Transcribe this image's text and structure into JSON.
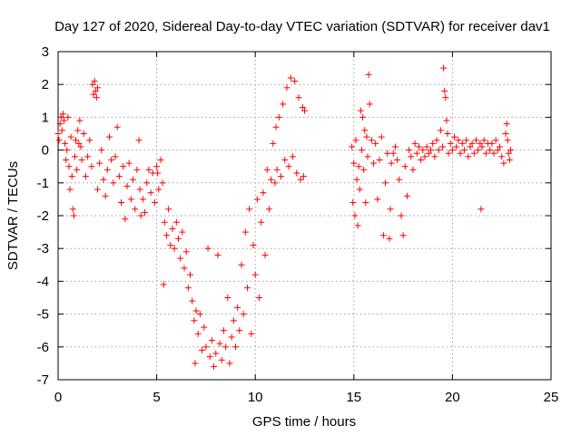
{
  "chart_data": {
    "type": "scatter",
    "title": "Day 127 of 2020, Sidereal Day-to-day VTEC variation (SDTVAR) for receiver dav1",
    "xlabel": "GPS time / hours",
    "ylabel": "SDTVAR / TECUs",
    "xlim": [
      0,
      25
    ],
    "ylim": [
      -7,
      3
    ],
    "x_ticks": [
      0,
      5,
      10,
      15,
      20,
      25
    ],
    "y_ticks": [
      -7,
      -6,
      -5,
      -4,
      -3,
      -2,
      -1,
      0,
      1,
      2,
      3
    ],
    "x_tick_labels": [
      "0",
      "5",
      "10",
      "15",
      "20",
      "25"
    ],
    "y_tick_labels": [
      "-7",
      "-6",
      "-5",
      "-4",
      "-3",
      "-2",
      "-1",
      "0",
      "1",
      "2",
      "3"
    ],
    "grid": true,
    "marker": "+",
    "marker_color": "#ff0000",
    "series": [
      {
        "name": "dav1",
        "points": [
          [
            0.0,
            0.5
          ],
          [
            0.05,
            0.3
          ],
          [
            0.1,
            0.8
          ],
          [
            0.15,
            1.0
          ],
          [
            0.2,
            0.6
          ],
          [
            0.25,
            1.1
          ],
          [
            0.3,
            0.9
          ],
          [
            0.35,
            0.2
          ],
          [
            0.4,
            -0.3
          ],
          [
            0.45,
            0.0
          ],
          [
            0.5,
            1.0
          ],
          [
            0.55,
            -0.5
          ],
          [
            0.6,
            -1.2
          ],
          [
            0.65,
            0.4
          ],
          [
            0.7,
            -0.8
          ],
          [
            0.75,
            -1.8
          ],
          [
            0.8,
            -2.0
          ],
          [
            0.85,
            -0.2
          ],
          [
            0.9,
            0.3
          ],
          [
            0.95,
            -0.6
          ],
          [
            1.0,
            0.6
          ],
          [
            1.05,
            0.2
          ],
          [
            1.1,
            0.9
          ],
          [
            1.15,
            0.1
          ],
          [
            1.2,
            -0.3
          ],
          [
            1.3,
            0.5
          ],
          [
            1.4,
            -0.8
          ],
          [
            1.5,
            -0.2
          ],
          [
            1.6,
            0.3
          ],
          [
            1.7,
            -0.5
          ],
          [
            1.75,
            2.0
          ],
          [
            1.8,
            1.7
          ],
          [
            1.85,
            2.1
          ],
          [
            1.9,
            1.8
          ],
          [
            1.95,
            1.6
          ],
          [
            2.0,
            1.9
          ],
          [
            2.0,
            -1.2
          ],
          [
            2.1,
            -0.4
          ],
          [
            2.2,
            0.0
          ],
          [
            2.3,
            -0.9
          ],
          [
            2.4,
            -1.4
          ],
          [
            2.5,
            -0.6
          ],
          [
            2.6,
            0.4
          ],
          [
            2.7,
            -0.3
          ],
          [
            2.8,
            -1.0
          ],
          [
            2.9,
            -0.2
          ],
          [
            3.0,
            0.7
          ],
          [
            3.1,
            -0.8
          ],
          [
            3.2,
            -1.6
          ],
          [
            3.3,
            -0.5
          ],
          [
            3.4,
            -2.1
          ],
          [
            3.5,
            -1.1
          ],
          [
            3.6,
            -0.4
          ],
          [
            3.7,
            -1.5
          ],
          [
            3.8,
            -0.9
          ],
          [
            3.9,
            -1.8
          ],
          [
            4.0,
            -0.6
          ],
          [
            4.1,
            0.3
          ],
          [
            4.15,
            -1.2
          ],
          [
            4.2,
            -2.0
          ],
          [
            4.3,
            -1.5
          ],
          [
            4.4,
            -1.9
          ],
          [
            4.5,
            -1.0
          ],
          [
            4.6,
            -0.6
          ],
          [
            4.7,
            -1.3
          ],
          [
            4.8,
            -0.7
          ],
          [
            4.9,
            -1.6
          ],
          [
            5.0,
            -0.5
          ],
          [
            5.05,
            -0.7
          ],
          [
            5.1,
            -1.2
          ],
          [
            5.2,
            -0.3
          ],
          [
            5.3,
            -1.0
          ],
          [
            5.35,
            -4.1
          ],
          [
            5.4,
            -2.2
          ],
          [
            5.5,
            -2.6
          ],
          [
            5.6,
            -1.8
          ],
          [
            5.7,
            -2.9
          ],
          [
            5.8,
            -2.4
          ],
          [
            5.9,
            -3.0
          ],
          [
            6.0,
            -2.2
          ],
          [
            6.1,
            -2.7
          ],
          [
            6.2,
            -3.3
          ],
          [
            6.3,
            -2.5
          ],
          [
            6.4,
            -3.6
          ],
          [
            6.5,
            -3.1
          ],
          [
            6.6,
            -4.2
          ],
          [
            6.7,
            -3.8
          ],
          [
            6.8,
            -4.6
          ],
          [
            6.9,
            -5.2
          ],
          [
            6.95,
            -6.5
          ],
          [
            7.0,
            -4.9
          ],
          [
            7.1,
            -5.6
          ],
          [
            7.2,
            -5.0
          ],
          [
            7.3,
            -6.1
          ],
          [
            7.4,
            -5.4
          ],
          [
            7.5,
            -6.0
          ],
          [
            7.6,
            -3.0
          ],
          [
            7.7,
            -6.3
          ],
          [
            7.8,
            -5.8
          ],
          [
            7.9,
            -6.6
          ],
          [
            8.0,
            -6.2
          ],
          [
            8.1,
            -3.2
          ],
          [
            8.2,
            -5.9
          ],
          [
            8.3,
            -6.4
          ],
          [
            8.4,
            -5.5
          ],
          [
            8.5,
            -6.0
          ],
          [
            8.6,
            -4.5
          ],
          [
            8.7,
            -6.5
          ],
          [
            8.8,
            -5.7
          ],
          [
            8.9,
            -5.2
          ],
          [
            9.0,
            -6.0
          ],
          [
            9.1,
            -4.8
          ],
          [
            9.2,
            -5.5
          ],
          [
            9.3,
            -3.5
          ],
          [
            9.4,
            -5.0
          ],
          [
            9.5,
            -2.5
          ],
          [
            9.6,
            -4.2
          ],
          [
            9.7,
            -1.8
          ],
          [
            9.8,
            -5.6
          ],
          [
            9.9,
            -2.9
          ],
          [
            10.0,
            -3.8
          ],
          [
            10.1,
            -1.5
          ],
          [
            10.2,
            -4.5
          ],
          [
            10.3,
            -2.2
          ],
          [
            10.4,
            -1.3
          ],
          [
            10.5,
            -3.2
          ],
          [
            10.6,
            -0.6
          ],
          [
            10.7,
            -1.8
          ],
          [
            10.8,
            -0.9
          ],
          [
            10.9,
            0.2
          ],
          [
            11.0,
            -1.0
          ],
          [
            11.05,
            0.7
          ],
          [
            11.1,
            -0.6
          ],
          [
            11.2,
            1.0
          ],
          [
            11.3,
            -0.8
          ],
          [
            11.4,
            1.4
          ],
          [
            11.5,
            -0.3
          ],
          [
            11.6,
            1.9
          ],
          [
            11.7,
            -0.5
          ],
          [
            11.8,
            2.2
          ],
          [
            11.9,
            -0.2
          ],
          [
            12.0,
            2.1
          ],
          [
            12.1,
            -0.7
          ],
          [
            12.2,
            1.6
          ],
          [
            12.3,
            -0.9
          ],
          [
            12.4,
            1.3
          ],
          [
            12.5,
            1.2
          ],
          [
            12.45,
            -0.8
          ],
          [
            14.9,
            0.1
          ],
          [
            14.95,
            -1.6
          ],
          [
            15.0,
            -0.4
          ],
          [
            15.05,
            -2.0
          ],
          [
            15.1,
            0.3
          ],
          [
            15.15,
            -0.9
          ],
          [
            15.2,
            -2.3
          ],
          [
            15.25,
            -0.5
          ],
          [
            15.3,
            -1.2
          ],
          [
            15.35,
            1.2
          ],
          [
            15.4,
            0.0
          ],
          [
            15.45,
            1.0
          ],
          [
            15.5,
            -0.6
          ],
          [
            15.55,
            0.6
          ],
          [
            15.6,
            -1.6
          ],
          [
            15.65,
            0.4
          ],
          [
            15.7,
            -0.2
          ],
          [
            15.75,
            2.3
          ],
          [
            15.8,
            1.4
          ],
          [
            15.9,
            0.3
          ],
          [
            16.0,
            -0.4
          ],
          [
            16.1,
            0.2
          ],
          [
            16.2,
            -1.5
          ],
          [
            16.3,
            -0.3
          ],
          [
            16.4,
            0.4
          ],
          [
            16.5,
            -2.6
          ],
          [
            16.6,
            -1.0
          ],
          [
            16.7,
            -0.1
          ],
          [
            16.8,
            -2.7
          ],
          [
            16.85,
            -1.8
          ],
          [
            16.9,
            -0.4
          ],
          [
            17.0,
            -0.1
          ],
          [
            17.1,
            0.1
          ],
          [
            17.2,
            -0.3
          ],
          [
            17.3,
            -0.9
          ],
          [
            17.4,
            -2.0
          ],
          [
            17.5,
            -2.6
          ],
          [
            17.6,
            -0.5
          ],
          [
            17.7,
            -1.4
          ],
          [
            17.8,
            0.0
          ],
          [
            17.9,
            -0.2
          ],
          [
            18.0,
            -0.6
          ],
          [
            18.1,
            0.2
          ],
          [
            18.2,
            -0.1
          ],
          [
            18.3,
            0.1
          ],
          [
            18.4,
            -0.3
          ],
          [
            18.5,
            0.0
          ],
          [
            18.6,
            -0.2
          ],
          [
            18.7,
            0.1
          ],
          [
            18.8,
            -0.1
          ],
          [
            18.9,
            0.0
          ],
          [
            19.0,
            0.2
          ],
          [
            19.1,
            -0.2
          ],
          [
            19.2,
            0.3
          ],
          [
            19.3,
            0.0
          ],
          [
            19.4,
            0.6
          ],
          [
            19.5,
            0.1
          ],
          [
            19.55,
            2.5
          ],
          [
            19.6,
            1.8
          ],
          [
            19.65,
            1.6
          ],
          [
            19.7,
            0.9
          ],
          [
            19.75,
            0.5
          ],
          [
            19.8,
            -0.1
          ],
          [
            19.9,
            0.2
          ],
          [
            20.0,
            0.0
          ],
          [
            20.1,
            0.4
          ],
          [
            20.2,
            0.1
          ],
          [
            20.3,
            0.3
          ],
          [
            20.4,
            -0.1
          ],
          [
            20.5,
            0.2
          ],
          [
            20.6,
            0.0
          ],
          [
            20.7,
            0.3
          ],
          [
            20.8,
            -0.2
          ],
          [
            20.9,
            0.1
          ],
          [
            21.0,
            0.2
          ],
          [
            21.1,
            -0.1
          ],
          [
            21.2,
            0.3
          ],
          [
            21.3,
            0.0
          ],
          [
            21.4,
            0.2
          ],
          [
            21.45,
            -1.8
          ],
          [
            21.5,
            0.1
          ],
          [
            21.6,
            0.3
          ],
          [
            21.7,
            -0.1
          ],
          [
            21.8,
            0.2
          ],
          [
            21.9,
            0.0
          ],
          [
            22.0,
            0.2
          ],
          [
            22.1,
            -0.1
          ],
          [
            22.2,
            0.3
          ],
          [
            22.3,
            0.0
          ],
          [
            22.4,
            0.1
          ],
          [
            22.5,
            -0.2
          ],
          [
            22.6,
            -0.4
          ],
          [
            22.7,
            0.5
          ],
          [
            22.75,
            0.8
          ],
          [
            22.8,
            0.3
          ],
          [
            22.85,
            -0.1
          ],
          [
            22.9,
            -0.3
          ],
          [
            22.95,
            0.0
          ]
        ]
      }
    ]
  }
}
